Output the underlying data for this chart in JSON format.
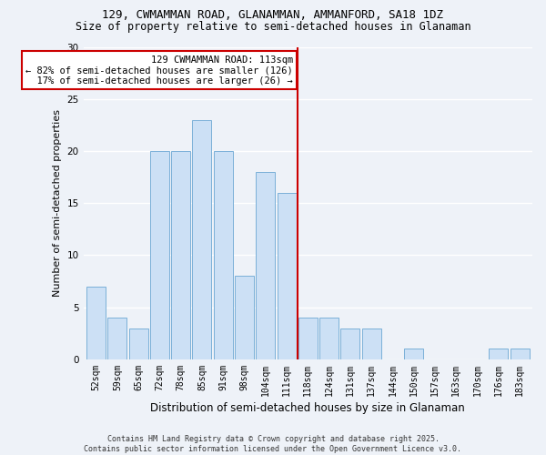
{
  "title1": "129, CWMAMMAN ROAD, GLANAMMAN, AMMANFORD, SA18 1DZ",
  "title2": "Size of property relative to semi-detached houses in Glanaman",
  "xlabel": "Distribution of semi-detached houses by size in Glanaman",
  "ylabel": "Number of semi-detached properties",
  "categories": [
    "52sqm",
    "59sqm",
    "65sqm",
    "72sqm",
    "78sqm",
    "85sqm",
    "91sqm",
    "98sqm",
    "104sqm",
    "111sqm",
    "118sqm",
    "124sqm",
    "131sqm",
    "137sqm",
    "144sqm",
    "150sqm",
    "157sqm",
    "163sqm",
    "170sqm",
    "176sqm",
    "183sqm"
  ],
  "values": [
    7,
    4,
    3,
    20,
    20,
    23,
    20,
    8,
    18,
    16,
    4,
    4,
    3,
    3,
    0,
    1,
    0,
    0,
    0,
    1,
    1
  ],
  "bar_color": "#cce0f5",
  "bar_edge_color": "#7ab0d8",
  "vline_x": 9.5,
  "vline_color": "#cc0000",
  "annotation_text": "129 CWMAMMAN ROAD: 113sqm\n← 82% of semi-detached houses are smaller (126)\n  17% of semi-detached houses are larger (26) →",
  "annotation_box_color": "#cc0000",
  "ylim": [
    0,
    30
  ],
  "yticks": [
    0,
    5,
    10,
    15,
    20,
    25,
    30
  ],
  "footer": "Contains HM Land Registry data © Crown copyright and database right 2025.\nContains public sector information licensed under the Open Government Licence v3.0.",
  "bg_color": "#eef2f8",
  "grid_color": "#ffffff",
  "title_fontsize": 9,
  "subtitle_fontsize": 8.5,
  "tick_fontsize": 7,
  "ylabel_fontsize": 8,
  "xlabel_fontsize": 8.5,
  "footer_fontsize": 6,
  "ann_fontsize": 7.5
}
